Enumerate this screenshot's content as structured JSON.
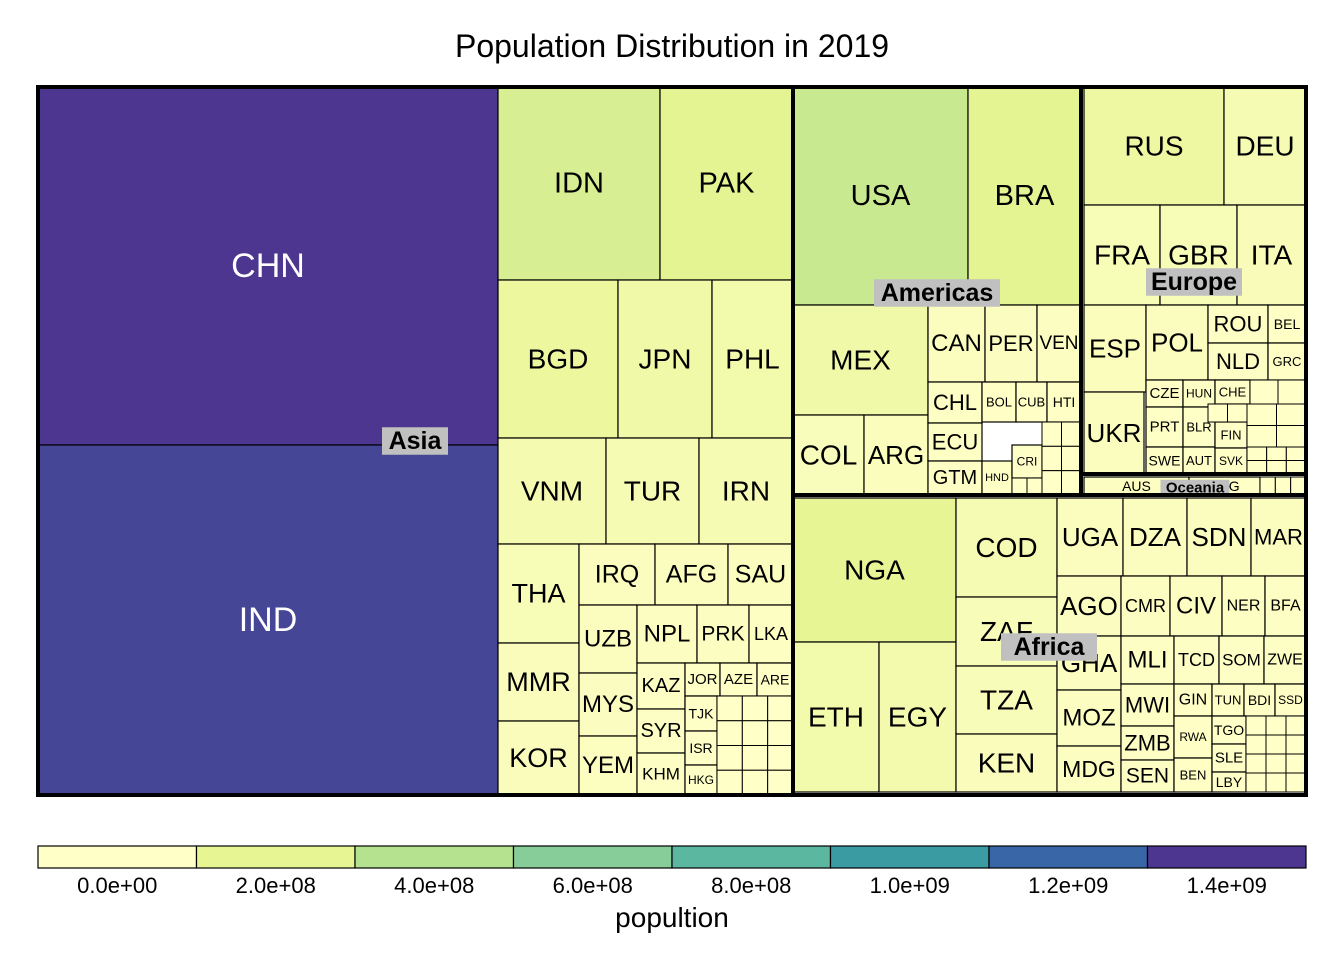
{
  "chart_data": {
    "type": "treemap",
    "title": "Population Distribution in 2019",
    "legend": {
      "title": "popultion",
      "tick_labels": [
        "0.0e+00",
        "2.0e+08",
        "4.0e+08",
        "6.0e+08",
        "8.0e+08",
        "1.0e+09",
        "1.2e+09",
        "1.4e+09"
      ],
      "colors": [
        "#ffffc8",
        "#e7f593",
        "#b5e28f",
        "#86cd99",
        "#5cb7a0",
        "#3a9ba2",
        "#3866a6",
        "#4d3690"
      ],
      "min": 0,
      "max": 1433783686
    },
    "groups": [
      {
        "name": "Asia",
        "countries": [
          {
            "code": "CHN",
            "population": 1433783686
          },
          {
            "code": "IND",
            "population": 1366417754
          },
          {
            "code": "IDN",
            "population": 270625568
          },
          {
            "code": "PAK",
            "population": 216565318
          },
          {
            "code": "BGD",
            "population": 163046161
          },
          {
            "code": "JPN",
            "population": 126860301
          },
          {
            "code": "PHL",
            "population": 108116615
          },
          {
            "code": "VNM",
            "population": 96462106
          },
          {
            "code": "TUR",
            "population": 83429615
          },
          {
            "code": "IRN",
            "population": 82913906
          },
          {
            "code": "THA",
            "population": 69625582
          },
          {
            "code": "MMR",
            "population": 54045420
          },
          {
            "code": "KOR",
            "population": 51225308
          },
          {
            "code": "IRQ",
            "population": 39309783
          },
          {
            "code": "AFG",
            "population": 38041754
          },
          {
            "code": "SAU",
            "population": 34268528
          },
          {
            "code": "UZB",
            "population": 32981716
          },
          {
            "code": "MYS",
            "population": 31949777
          },
          {
            "code": "YEM",
            "population": 29161922
          },
          {
            "code": "NPL",
            "population": 28608710
          },
          {
            "code": "PRK",
            "population": 25666161
          },
          {
            "code": "LKA",
            "population": 21323733
          },
          {
            "code": "KAZ",
            "population": 18551427
          },
          {
            "code": "SYR",
            "population": 17070135
          },
          {
            "code": "KHM",
            "population": 16486542
          },
          {
            "code": "JOR",
            "population": 10101694
          },
          {
            "code": "AZE",
            "population": 10047718
          },
          {
            "code": "ARE",
            "population": 9770529
          },
          {
            "code": "TJK",
            "population": 9321018
          },
          {
            "code": "ISR",
            "population": 8519377
          },
          {
            "code": "HKG",
            "population": 7436154
          }
        ]
      },
      {
        "name": "Americas",
        "countries": [
          {
            "code": "USA",
            "population": 329064917
          },
          {
            "code": "BRA",
            "population": 211049527
          },
          {
            "code": "MEX",
            "population": 127575529
          },
          {
            "code": "COL",
            "population": 50339443
          },
          {
            "code": "ARG",
            "population": 44780677
          },
          {
            "code": "CAN",
            "population": 37411047
          },
          {
            "code": "PER",
            "population": 32510453
          },
          {
            "code": "VEN",
            "population": 28515829
          },
          {
            "code": "CHL",
            "population": 18952038
          },
          {
            "code": "ECU",
            "population": 17373662
          },
          {
            "code": "GTM",
            "population": 17581472
          },
          {
            "code": "BOL",
            "population": 11513100
          },
          {
            "code": "CUB",
            "population": 11333483
          },
          {
            "code": "HTI",
            "population": 11263077
          },
          {
            "code": "HND",
            "population": 9746117
          },
          {
            "code": "CRI",
            "population": 5047561
          }
        ]
      },
      {
        "name": "Europe",
        "countries": [
          {
            "code": "RUS",
            "population": 145872256
          },
          {
            "code": "DEU",
            "population": 83517045
          },
          {
            "code": "FRA",
            "population": 65129728
          },
          {
            "code": "GBR",
            "population": 67530172
          },
          {
            "code": "ITA",
            "population": 60550075
          },
          {
            "code": "ESP",
            "population": 46736776
          },
          {
            "code": "POL",
            "population": 37887768
          },
          {
            "code": "UKR",
            "population": 43993638
          },
          {
            "code": "ROU",
            "population": 19364557
          },
          {
            "code": "NLD",
            "population": 17097130
          },
          {
            "code": "BEL",
            "population": 11539328
          },
          {
            "code": "GRC",
            "population": 10473455
          },
          {
            "code": "CZE",
            "population": 10689209
          },
          {
            "code": "HUN",
            "population": 9684679
          },
          {
            "code": "CHE",
            "population": 8591365
          },
          {
            "code": "PRT",
            "population": 10226187
          },
          {
            "code": "BLR",
            "population": 9452411
          },
          {
            "code": "SWE",
            "population": 10036379
          },
          {
            "code": "AUT",
            "population": 8955102
          },
          {
            "code": "FIN",
            "population": 5532156
          },
          {
            "code": "SVK",
            "population": 5457013
          }
        ]
      },
      {
        "name": "Oceania",
        "countries": [
          {
            "code": "AUS",
            "population": 25203198
          },
          {
            "code": "PNG",
            "population": 8776109
          }
        ]
      },
      {
        "name": "Africa",
        "countries": [
          {
            "code": "NGA",
            "population": 200963599
          },
          {
            "code": "ETH",
            "population": 112078730
          },
          {
            "code": "EGY",
            "population": 100388073
          },
          {
            "code": "COD",
            "population": 86790567
          },
          {
            "code": "ZAF",
            "population": 58558270
          },
          {
            "code": "TZA",
            "population": 58005463
          },
          {
            "code": "KEN",
            "population": 52573973
          },
          {
            "code": "UGA",
            "population": 44269594
          },
          {
            "code": "DZA",
            "population": 43053054
          },
          {
            "code": "SDN",
            "population": 42813238
          },
          {
            "code": "MAR",
            "population": 36471769
          },
          {
            "code": "AGO",
            "population": 31825295
          },
          {
            "code": "GHA",
            "population": 30417856
          },
          {
            "code": "MOZ",
            "population": 30366036
          },
          {
            "code": "MDG",
            "population": 26969307
          },
          {
            "code": "CMR",
            "population": 25876380
          },
          {
            "code": "CIV",
            "population": 25716544
          },
          {
            "code": "NER",
            "population": 23310715
          },
          {
            "code": "BFA",
            "population": 20321378
          },
          {
            "code": "MLI",
            "population": 19658031
          },
          {
            "code": "MWI",
            "population": 18628747
          },
          {
            "code": "ZMB",
            "population": 17861030
          },
          {
            "code": "SEN",
            "population": 16296364
          },
          {
            "code": "TCD",
            "population": 15946876
          },
          {
            "code": "SOM",
            "population": 15442905
          },
          {
            "code": "ZWE",
            "population": 14645468
          },
          {
            "code": "GIN",
            "population": 12771246
          },
          {
            "code": "RWA",
            "population": 12626950
          },
          {
            "code": "BEN",
            "population": 11801151
          },
          {
            "code": "TUN",
            "population": 11694719
          },
          {
            "code": "BDI",
            "population": 11530580
          },
          {
            "code": "SSD",
            "population": 11062113
          },
          {
            "code": "TGO",
            "population": 8082366
          },
          {
            "code": "SLE",
            "population": 7813215
          },
          {
            "code": "LBY",
            "population": 6777452
          }
        ]
      }
    ]
  }
}
